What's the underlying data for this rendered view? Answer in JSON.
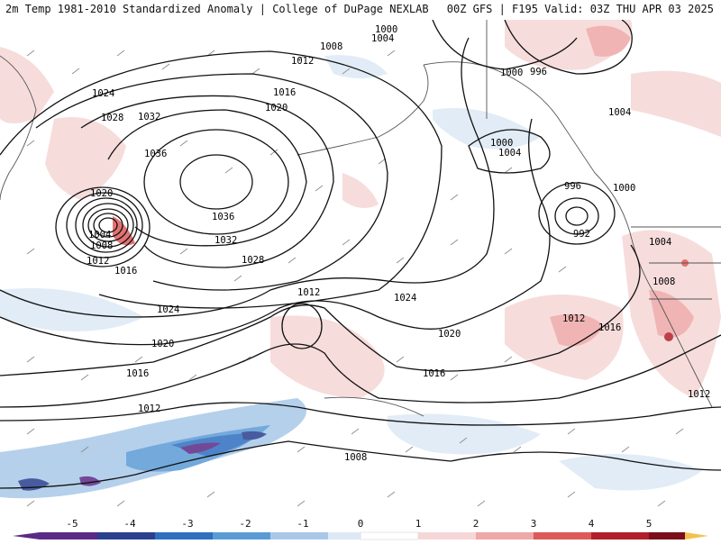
{
  "header": {
    "title_left": "2m Temp 1981-2010 Standardized Anomaly | College of DuPage NEXLAB",
    "title_right": "00Z GFS | F195 Valid: 03Z THU APR 03 2025"
  },
  "isobar_labels": [
    "1000",
    "1004",
    "1008",
    "1012",
    "1024",
    "1032",
    "1028",
    "1036",
    "1016",
    "1020",
    "1000",
    "996",
    "1004",
    "1000",
    "1004",
    "996",
    "992",
    "1000",
    "1004",
    "1008",
    "1024",
    "1020",
    "1016",
    "1012",
    "1016",
    "1012",
    "1036",
    "1032",
    "1028",
    "1024",
    "1020",
    "1016",
    "1012",
    "1008",
    "1012",
    "1004",
    "1016",
    "1020",
    "1012",
    "1008"
  ],
  "colorbar": {
    "ticks": [
      "-5",
      "-4",
      "-3",
      "-2",
      "-1",
      "0",
      "1",
      "2",
      "3",
      "4",
      "5"
    ],
    "colors": [
      "#5b2a86",
      "#2a3f8f",
      "#2f6fc0",
      "#5b9bd5",
      "#a9c8e8",
      "#dce9f5",
      "#ffffff",
      "#f6d6d6",
      "#eea8a8",
      "#dd5a5a",
      "#b0202a",
      "#7a0f1a",
      "#f2c14e"
    ]
  }
}
